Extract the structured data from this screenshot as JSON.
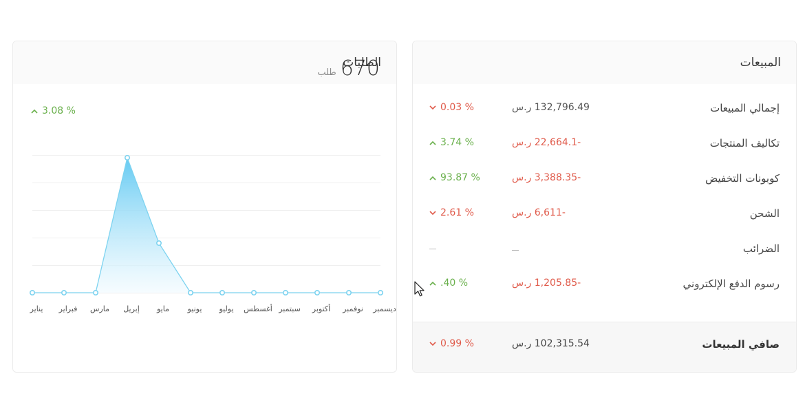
{
  "orders": {
    "title": "الطلبات",
    "count": "670",
    "count_unit": "طلب",
    "change": "3.08 %",
    "change_direction": "up",
    "chart_data": {
      "type": "area",
      "categories": [
        "يناير",
        "فبراير",
        "مارس",
        "إبريل",
        "مايو",
        "يونيو",
        "يوليو",
        "أغسطس",
        "سبتمبر",
        "أكتوبر",
        "نوفمبر",
        "ديسمبر"
      ],
      "values": [
        0,
        0,
        0,
        490,
        180,
        0,
        0,
        0,
        0,
        0,
        0,
        0
      ],
      "ylim": [
        0,
        500
      ],
      "grid": true,
      "x_direction": "right-to-left",
      "colors": {
        "line": "#7dd3f0",
        "fill_top": "#5ec8f2",
        "fill_bottom": "#f0faff",
        "point_stroke": "#7dd3f0"
      }
    }
  },
  "sales": {
    "title": "المبيعات",
    "rows": [
      {
        "label": "إجمالي المبيعات",
        "amount": "132,796.49 ر.س",
        "amount_tone": "neutral-dark",
        "pct": "0.03 %",
        "direction": "down"
      },
      {
        "label": "تكاليف المنتجات",
        "amount": "-22,664.1 ر.س",
        "amount_tone": "neg",
        "pct": "3.74 %",
        "direction": "up"
      },
      {
        "label": "كوبونات التخفيض",
        "amount": "-3,388.35 ر.س",
        "amount_tone": "neg",
        "pct": "93.87 %",
        "direction": "up"
      },
      {
        "label": "الشحن",
        "amount": "-6,611 ر.س",
        "amount_tone": "neg",
        "pct": "2.61 %",
        "direction": "down"
      },
      {
        "label": "الضرائب",
        "amount": "",
        "amount_tone": "none",
        "pct": "",
        "direction": "none"
      },
      {
        "label": "رسوم الدفع الإلكتروني",
        "amount": "-1,205.85 ر.س",
        "amount_tone": "neg",
        "pct": ".40 %",
        "direction": "up"
      }
    ],
    "footer": {
      "label": "صافي المبيعات",
      "amount": "102,315.54 ر.س",
      "pct": "0.99 %",
      "direction": "down"
    }
  },
  "colors": {
    "up": "#6ab04c",
    "down": "#e05b4b"
  }
}
